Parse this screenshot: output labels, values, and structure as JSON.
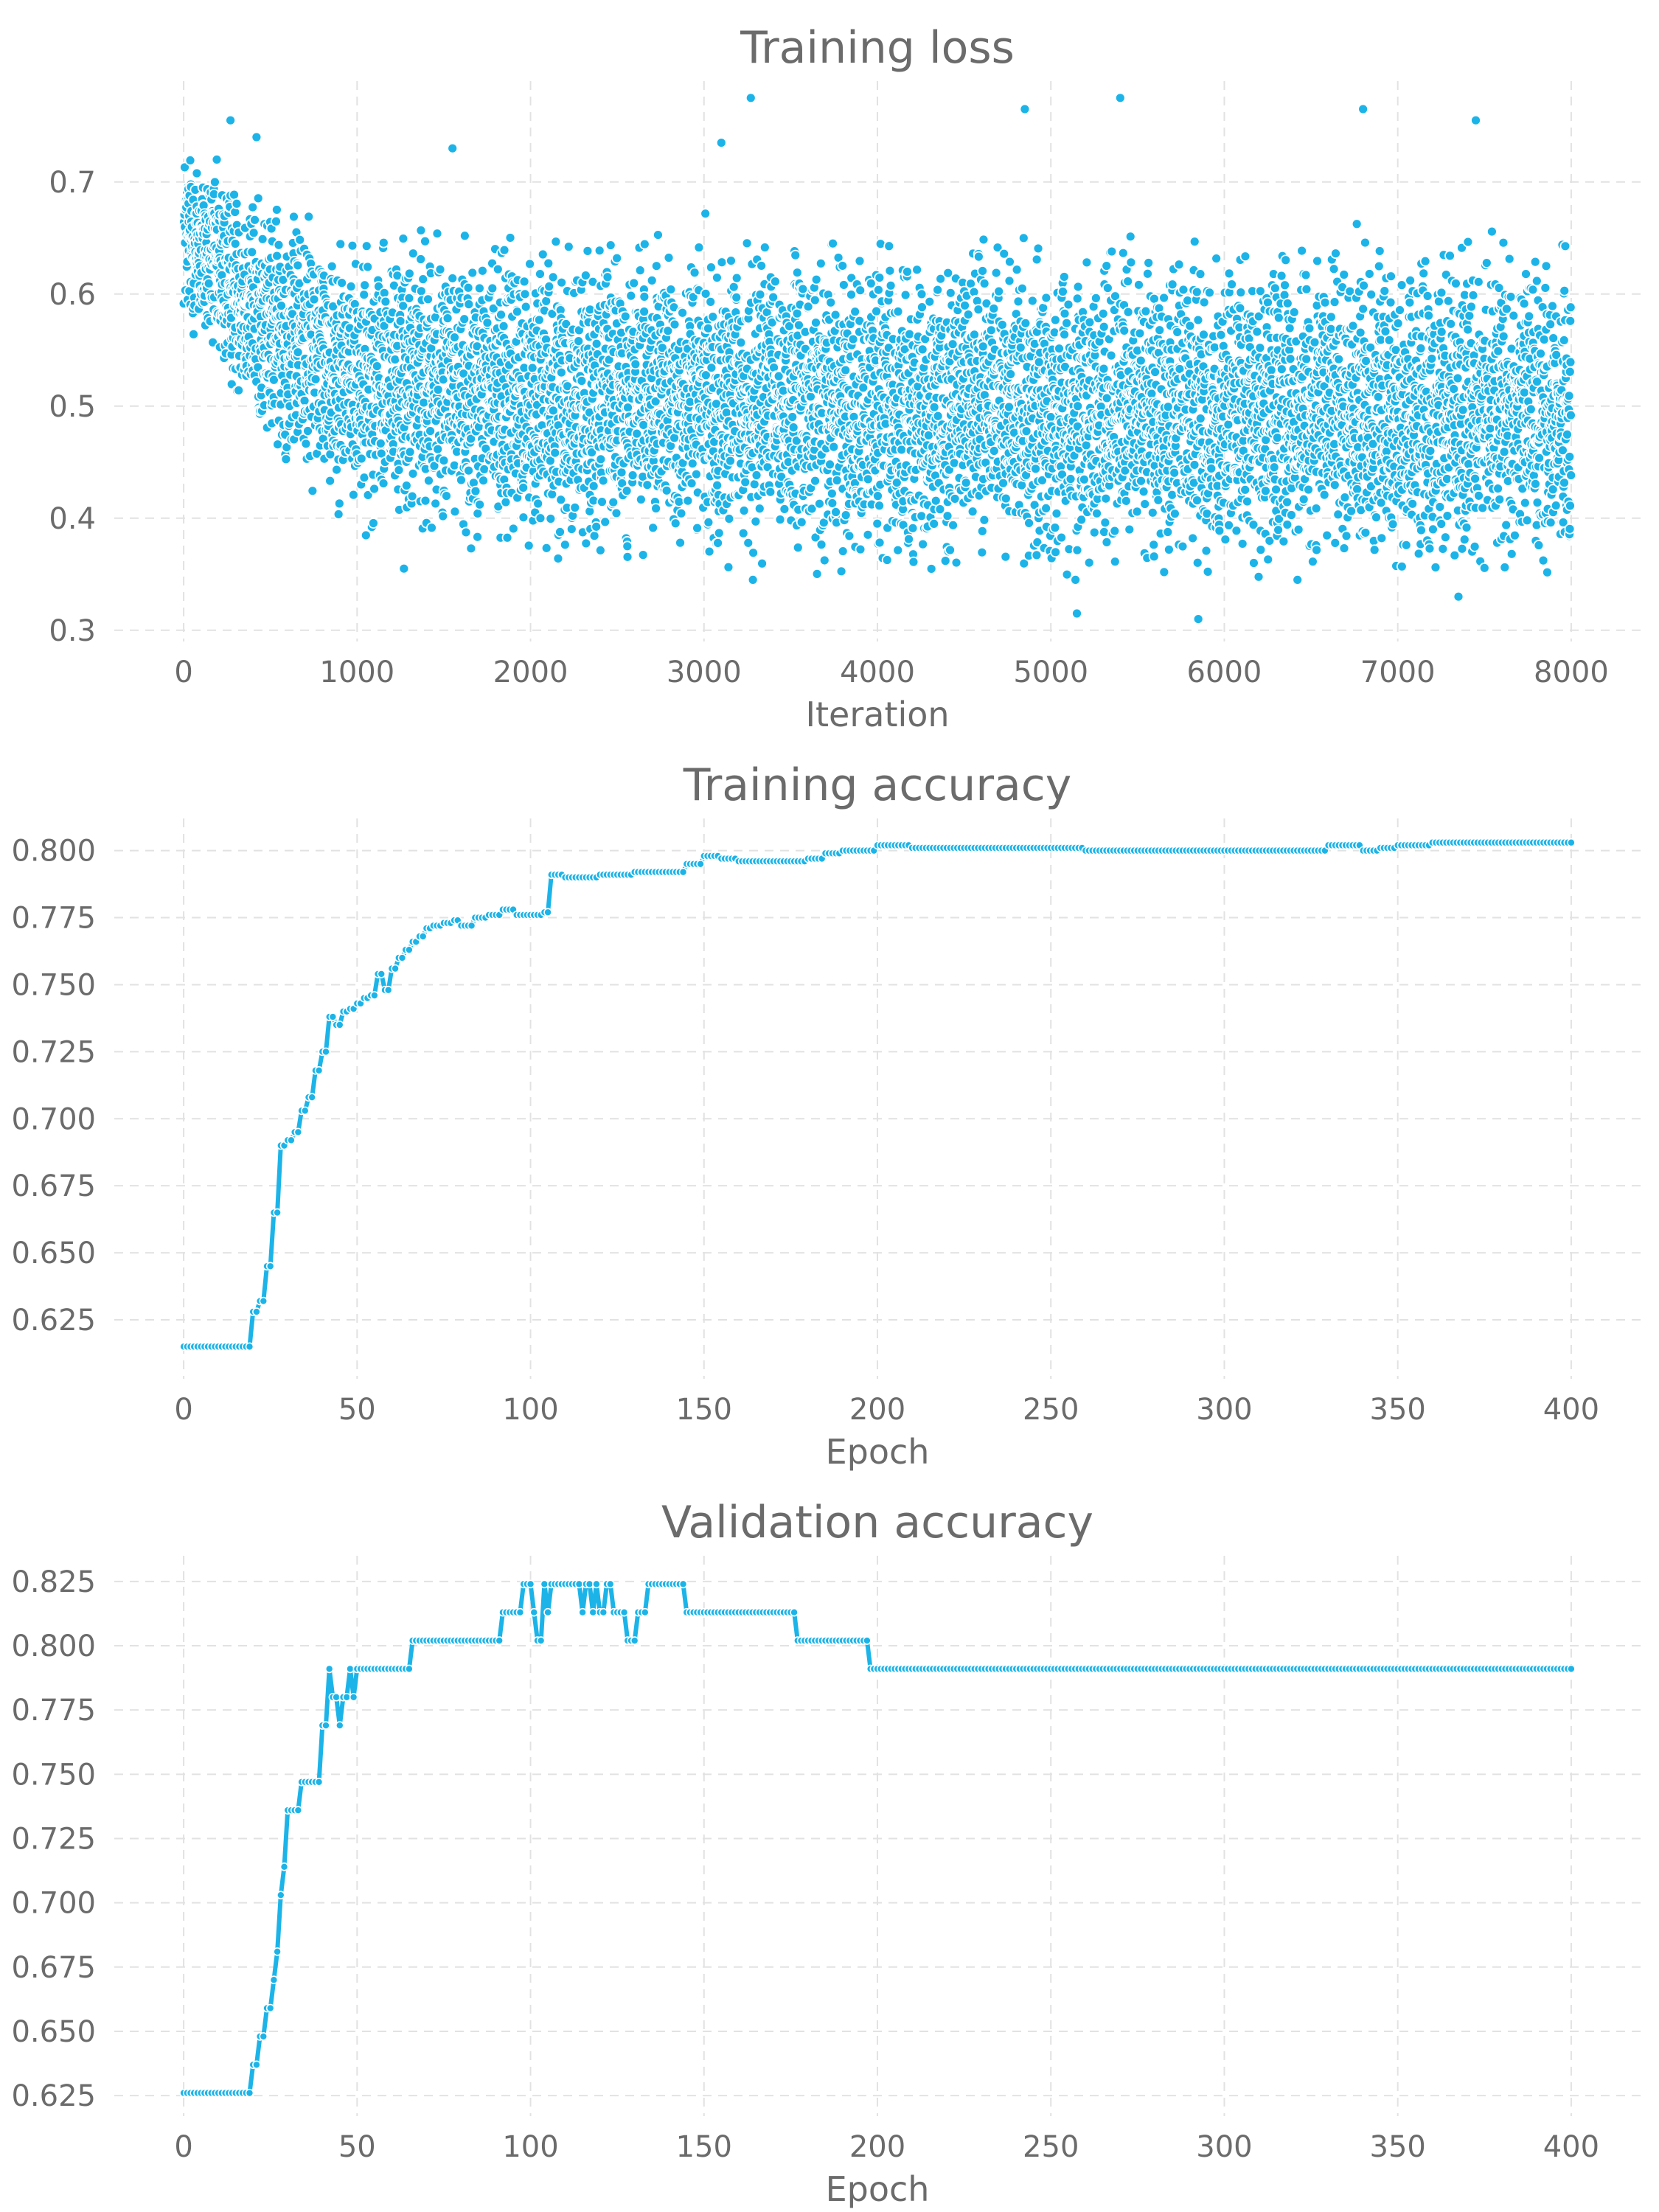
{
  "accent_color": "#1cb4e8",
  "chart_data": [
    {
      "type": "scatter",
      "title": "Training loss",
      "xlabel": "Iteration",
      "ylabel": "",
      "xlim": [
        -400,
        8400
      ],
      "ylim": [
        0.29,
        0.79
      ],
      "xticks": [
        0,
        1000,
        2000,
        3000,
        4000,
        5000,
        6000,
        7000,
        8000
      ],
      "yticks": [
        0.3,
        0.4,
        0.5,
        0.6,
        0.7
      ],
      "ytick_labels": [
        "0.3",
        "0.4",
        "0.5",
        "0.6",
        "0.7"
      ],
      "grid": true,
      "legend": "none",
      "series": [
        {
          "marker": "dot",
          "n_points": 8000,
          "trend_x": [
            0,
            500,
            1000,
            2000,
            3000,
            4000,
            5000,
            6000,
            7000,
            8000
          ],
          "trend_mean": [
            0.655,
            0.57,
            0.525,
            0.51,
            0.505,
            0.5,
            0.5,
            0.495,
            0.495,
            0.495
          ],
          "trend_spread": [
            0.06,
            0.08,
            0.09,
            0.1,
            0.1,
            0.1,
            0.1,
            0.1,
            0.1,
            0.1
          ],
          "outliers_x": [
            270,
            420,
            1270,
            1550,
            3100,
            3270,
            4850,
            5150,
            5400,
            5850,
            6800,
            7350,
            7450
          ],
          "outliers_y": [
            0.755,
            0.74,
            0.355,
            0.73,
            0.735,
            0.775,
            0.765,
            0.315,
            0.775,
            0.31,
            0.765,
            0.33,
            0.755
          ]
        }
      ]
    },
    {
      "type": "line",
      "title": "Training accuracy",
      "xlabel": "Epoch",
      "ylabel": "",
      "xlim": [
        -20,
        420
      ],
      "ylim": [
        0.603,
        0.812
      ],
      "xticks": [
        0,
        50,
        100,
        150,
        200,
        250,
        300,
        350,
        400
      ],
      "yticks": [
        0.625,
        0.65,
        0.675,
        0.7,
        0.725,
        0.75,
        0.775,
        0.8
      ],
      "ytick_labels": [
        "0.625",
        "0.650",
        "0.675",
        "0.700",
        "0.725",
        "0.750",
        "0.775",
        "0.800"
      ],
      "grid": true,
      "legend": "none",
      "series": [
        {
          "marker": "circle",
          "x": [
            0,
            19,
            20,
            22,
            24,
            26,
            28,
            30,
            32,
            34,
            36,
            38,
            40,
            42,
            44,
            46,
            48,
            50,
            52,
            54,
            56,
            58,
            60,
            62,
            64,
            66,
            68,
            70,
            72,
            75,
            78,
            80,
            84,
            88,
            92,
            96,
            100,
            104,
            106,
            110,
            120,
            130,
            140,
            145,
            150,
            155,
            160,
            170,
            180,
            185,
            190,
            200,
            205,
            210,
            220,
            240,
            250,
            260,
            280,
            300,
            320,
            330,
            340,
            345,
            350,
            360,
            400
          ],
          "y": [
            0.615,
            0.615,
            0.628,
            0.632,
            0.645,
            0.665,
            0.69,
            0.692,
            0.695,
            0.703,
            0.708,
            0.718,
            0.725,
            0.738,
            0.735,
            0.74,
            0.741,
            0.743,
            0.745,
            0.746,
            0.754,
            0.748,
            0.756,
            0.76,
            0.763,
            0.766,
            0.768,
            0.771,
            0.772,
            0.773,
            0.774,
            0.772,
            0.775,
            0.776,
            0.778,
            0.776,
            0.776,
            0.777,
            0.791,
            0.79,
            0.791,
            0.792,
            0.792,
            0.795,
            0.798,
            0.797,
            0.796,
            0.796,
            0.797,
            0.799,
            0.8,
            0.802,
            0.802,
            0.801,
            0.801,
            0.801,
            0.801,
            0.8,
            0.8,
            0.8,
            0.8,
            0.802,
            0.8,
            0.801,
            0.802,
            0.803,
            0.803
          ]
        }
      ]
    },
    {
      "type": "line",
      "title": "Validation accuracy",
      "xlabel": "Epoch",
      "ylabel": "",
      "xlim": [
        -20,
        420
      ],
      "ylim": [
        0.617,
        0.835
      ],
      "xticks": [
        0,
        50,
        100,
        150,
        200,
        250,
        300,
        350,
        400
      ],
      "yticks": [
        0.625,
        0.65,
        0.675,
        0.7,
        0.725,
        0.75,
        0.775,
        0.8,
        0.825
      ],
      "ytick_labels": [
        "0.625",
        "0.650",
        "0.675",
        "0.700",
        "0.725",
        "0.750",
        "0.775",
        "0.800",
        "0.825"
      ],
      "grid": true,
      "legend": "none",
      "series": [
        {
          "marker": "circle",
          "x": [
            0,
            19,
            20,
            22,
            24,
            26,
            27,
            28,
            29,
            30,
            32,
            34,
            38,
            40,
            42,
            43,
            45,
            46,
            48,
            49,
            50,
            65,
            66,
            91,
            92,
            96,
            98,
            100,
            101,
            102,
            104,
            105,
            106,
            114,
            115,
            116,
            118,
            119,
            120,
            122,
            124,
            126,
            128,
            130,
            131,
            132,
            134,
            136,
            138,
            144,
            145,
            146,
            176,
            177,
            196,
            197,
            198,
            400
          ],
          "y": [
            0.626,
            0.626,
            0.637,
            0.648,
            0.659,
            0.67,
            0.681,
            0.703,
            0.714,
            0.736,
            0.736,
            0.747,
            0.747,
            0.769,
            0.791,
            0.78,
            0.769,
            0.78,
            0.791,
            0.78,
            0.791,
            0.791,
            0.802,
            0.802,
            0.813,
            0.813,
            0.824,
            0.824,
            0.813,
            0.802,
            0.824,
            0.813,
            0.824,
            0.824,
            0.813,
            0.824,
            0.813,
            0.824,
            0.813,
            0.824,
            0.813,
            0.813,
            0.802,
            0.802,
            0.813,
            0.813,
            0.824,
            0.824,
            0.824,
            0.824,
            0.813,
            0.813,
            0.813,
            0.802,
            0.802,
            0.802,
            0.791,
            0.791
          ]
        }
      ]
    }
  ]
}
